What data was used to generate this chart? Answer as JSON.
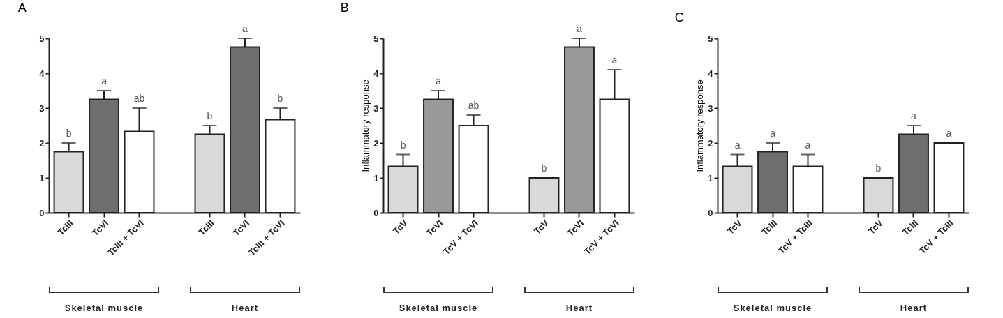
{
  "chart_data": [
    {
      "type": "bar",
      "title": "A",
      "categories": [
        "TcIII",
        "TcVI",
        "TcIII + TcVI",
        null,
        "TcIII",
        "TcVI",
        "TcIII + TcVI"
      ],
      "values": [
        1.75,
        3.25,
        2.33,
        null,
        2.25,
        4.75,
        2.67
      ],
      "colors": [
        "#d9d9d9",
        "#6e6e6e",
        "#ffffff",
        null,
        "#d9d9d9",
        "#6e6e6e",
        "#ffffff"
      ],
      "errors": [
        [
          1.75,
          2.0
        ],
        [
          3.25,
          3.5
        ],
        [
          2.33,
          3.0
        ],
        null,
        [
          2.25,
          2.5
        ],
        [
          4.75,
          5.0
        ],
        [
          2.67,
          3.0
        ]
      ],
      "ylim": [
        0,
        5
      ],
      "yticks": [
        0,
        1,
        2,
        3,
        4,
        5
      ],
      "annotations": [
        "b",
        "a",
        "ab",
        "b",
        "a",
        "b",
        "Skeletal muscle",
        "Heart"
      ]
    },
    {
      "type": "bar",
      "title": "B",
      "ylabel": "Inflammatory response",
      "categories": [
        "TcV",
        "TcVI",
        "TcV + TcVI",
        null,
        "TcV",
        "TcVI",
        "TcV + TcVI"
      ],
      "values": [
        1.33,
        3.25,
        2.5,
        null,
        1.0,
        4.75,
        3.25
      ],
      "colors": [
        "#d9d9d9",
        "#999999",
        "#ffffff",
        null,
        "#d9d9d9",
        "#999999",
        "#ffffff"
      ],
      "errors": [
        [
          1.33,
          1.67
        ],
        [
          3.25,
          3.5
        ],
        [
          2.5,
          2.8
        ],
        null,
        null,
        [
          4.75,
          5.0
        ],
        [
          3.25,
          4.1
        ]
      ],
      "ylim": [
        0,
        5
      ],
      "yticks": [
        0,
        1,
        2,
        3,
        4,
        5
      ],
      "annotations": [
        "b",
        "a",
        "ab",
        "b",
        "a",
        "a",
        "Skeletal muscle",
        "Heart"
      ]
    },
    {
      "type": "bar",
      "title": "C",
      "ylabel": "Inflammatory response",
      "categories": [
        "TcV",
        "TcIII",
        "TcV + TcIII",
        null,
        "TcV",
        "TcIII",
        "TcV + TcIII"
      ],
      "values": [
        1.33,
        1.75,
        1.33,
        null,
        1.0,
        2.25,
        2.0
      ],
      "colors": [
        "#d9d9d9",
        "#6e6e6e",
        "#ffffff",
        null,
        "#d9d9d9",
        "#6e6e6e",
        "#ffffff"
      ],
      "errors": [
        [
          1.33,
          1.67
        ],
        [
          1.75,
          2.0
        ],
        [
          1.33,
          1.67
        ],
        null,
        null,
        [
          2.25,
          2.5
        ],
        null
      ],
      "ylim": [
        0,
        5
      ],
      "yticks": [
        0,
        1,
        2,
        3,
        4,
        5
      ],
      "annotations": [
        "a",
        "a",
        "a",
        "b",
        "a",
        "a",
        "Skeletal muscle",
        "Heart"
      ]
    }
  ]
}
